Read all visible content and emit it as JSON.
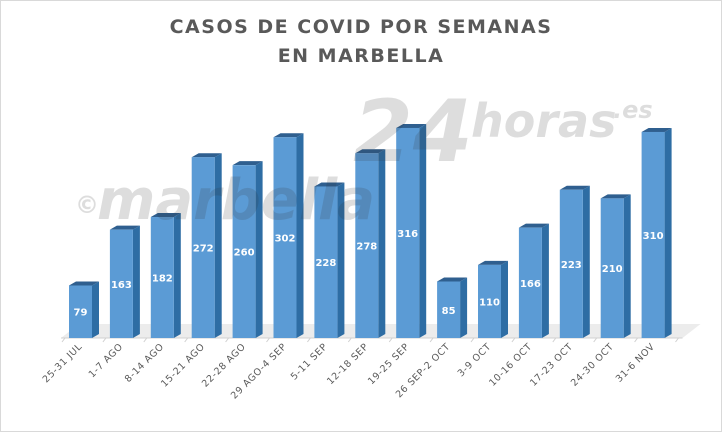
{
  "chart_data": {
    "type": "bar",
    "title_lines": [
      "CASOS DE COVID POR SEMANAS",
      "EN MARBELLA"
    ],
    "categories": [
      "25-31 JUL",
      "1-7 AGO",
      "8-14 AGO",
      "15-21 AGO",
      "22-28 AGO",
      "29 AGO-4 SEP",
      "5-11 SEP",
      "12-18 SEP",
      "19-25 SEP",
      "26 SEP-2 OCT",
      "3-9 OCT",
      "10-16 OCT",
      "17-23 OCT",
      "24-30 OCT",
      "31-6 NOV"
    ],
    "values": [
      79,
      163,
      182,
      272,
      260,
      302,
      228,
      278,
      316,
      85,
      110,
      166,
      223,
      210,
      310
    ],
    "xlabel": "",
    "ylabel": "",
    "ylim": [
      0,
      340
    ],
    "grid": false,
    "legend": false,
    "data_labels": true
  },
  "watermark": {
    "symbol": "©",
    "text": "marbella",
    "digits": "24",
    "suffix": "horas",
    "domain": ".es"
  },
  "colors": {
    "bar_front": "#5b9bd5",
    "bar_side": "#2e6da4",
    "bar_top": "#2f5f8f",
    "floor": "#ececec",
    "text": "#595959"
  }
}
